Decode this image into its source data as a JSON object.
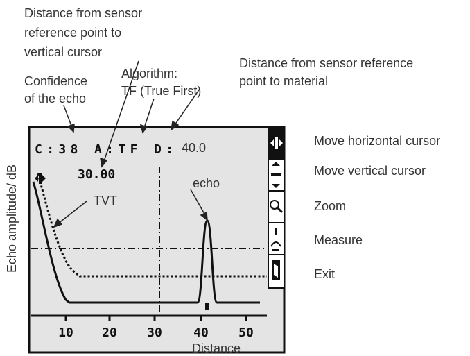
{
  "annotations": {
    "cursor_distance": [
      "Distance from sensor",
      "reference point to",
      "vertical cursor"
    ],
    "confidence": [
      "Confidence",
      "of the echo"
    ],
    "algorithm": [
      "Algorithm:",
      "TF (True First)"
    ],
    "material_distance": [
      "Distance from sensor reference",
      "point to material"
    ]
  },
  "screen": {
    "header": "C:38 A:TF D:",
    "distance": "40.0",
    "cursor_value": "30.00",
    "echo_label": "echo",
    "tvt_label": "TVT",
    "x_ticks": [
      "10",
      "20",
      "30",
      "40",
      "50"
    ]
  },
  "axes": {
    "y_label": "Echo amplitude/ dB",
    "x_label": "Distance"
  },
  "icons": [
    "Move horizontal cursor",
    "Move vertical cursor",
    "Zoom",
    "Measure",
    "Exit"
  ]
}
